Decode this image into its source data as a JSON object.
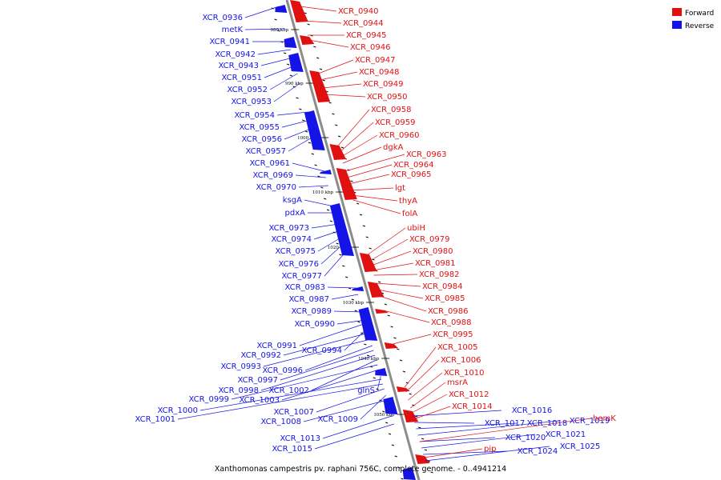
{
  "colors": {
    "forward": "#e01010",
    "reverse": "#1414e6",
    "backbone": "#8c8c8c",
    "tick": "#000000"
  },
  "legend": [
    {
      "label": "Forward",
      "color": "#e01010"
    },
    {
      "label": "Reverse",
      "color": "#1414e6"
    }
  ],
  "caption": "Xanthomonas campestris pv. raphani 756C, complete genome. - 0..4941214",
  "kbp_ticks": [
    "980 kbp",
    "990 kbp",
    "1000 kbp",
    "1010 kbp",
    "1020 kbp",
    "1030 kbp",
    "1040 kbp",
    "1050 kbp"
  ],
  "reverse_labels": [
    "XCR_0936",
    "metK",
    "XCR_0941",
    "XCR_0942",
    "XCR_0943",
    "XCR_0951",
    "XCR_0952",
    "XCR_0953",
    "XCR_0954",
    "XCR_0955",
    "XCR_0956",
    "XCR_0957",
    "XCR_0961",
    "XCR_0969",
    "XCR_0970",
    "ksgA",
    "pdxA",
    "XCR_0973",
    "XCR_0974",
    "XCR_0975",
    "XCR_0976",
    "XCR_0977",
    "XCR_0983",
    "XCR_0987",
    "XCR_0989",
    "XCR_0990",
    "XCR_0991",
    "XCR_0994",
    "XCR_0992",
    "XCR_0993",
    "XCR_0996",
    "XCR_0997",
    "XCR_0998",
    "XCR_1002",
    "XCR_0999",
    "XCR_1003",
    "glnS",
    "XCR_1000",
    "XCR_1001",
    "XCR_1007",
    "XCR_1009",
    "XCR_1008",
    "XCR_1013",
    "XCR_1015",
    "XCR_1016",
    "XCR_1017",
    "XCR_1018",
    "XCR_1019",
    "XCR_1020",
    "XCR_1021",
    "XCR_1024",
    "XCR_1025"
  ],
  "forward_labels": [
    "XCR_0940",
    "XCR_0944",
    "XCR_0945",
    "XCR_0946",
    "XCR_0947",
    "XCR_0948",
    "XCR_0949",
    "XCR_0950",
    "XCR_0958",
    "XCR_0959",
    "XCR_0960",
    "dgkA",
    "XCR_0963",
    "XCR_0964",
    "XCR_0965",
    "lgt",
    "thyA",
    "folA",
    "ubiH",
    "XCR_0979",
    "XCR_0980",
    "XCR_0981",
    "XCR_0982",
    "XCR_0984",
    "XCR_0985",
    "XCR_0986",
    "XCR_0988",
    "XCR_0995",
    "XCR_1005",
    "XCR_1006",
    "XCR_1010",
    "msrA",
    "XCR_1012",
    "XCR_1014",
    "hemK",
    "pip"
  ]
}
